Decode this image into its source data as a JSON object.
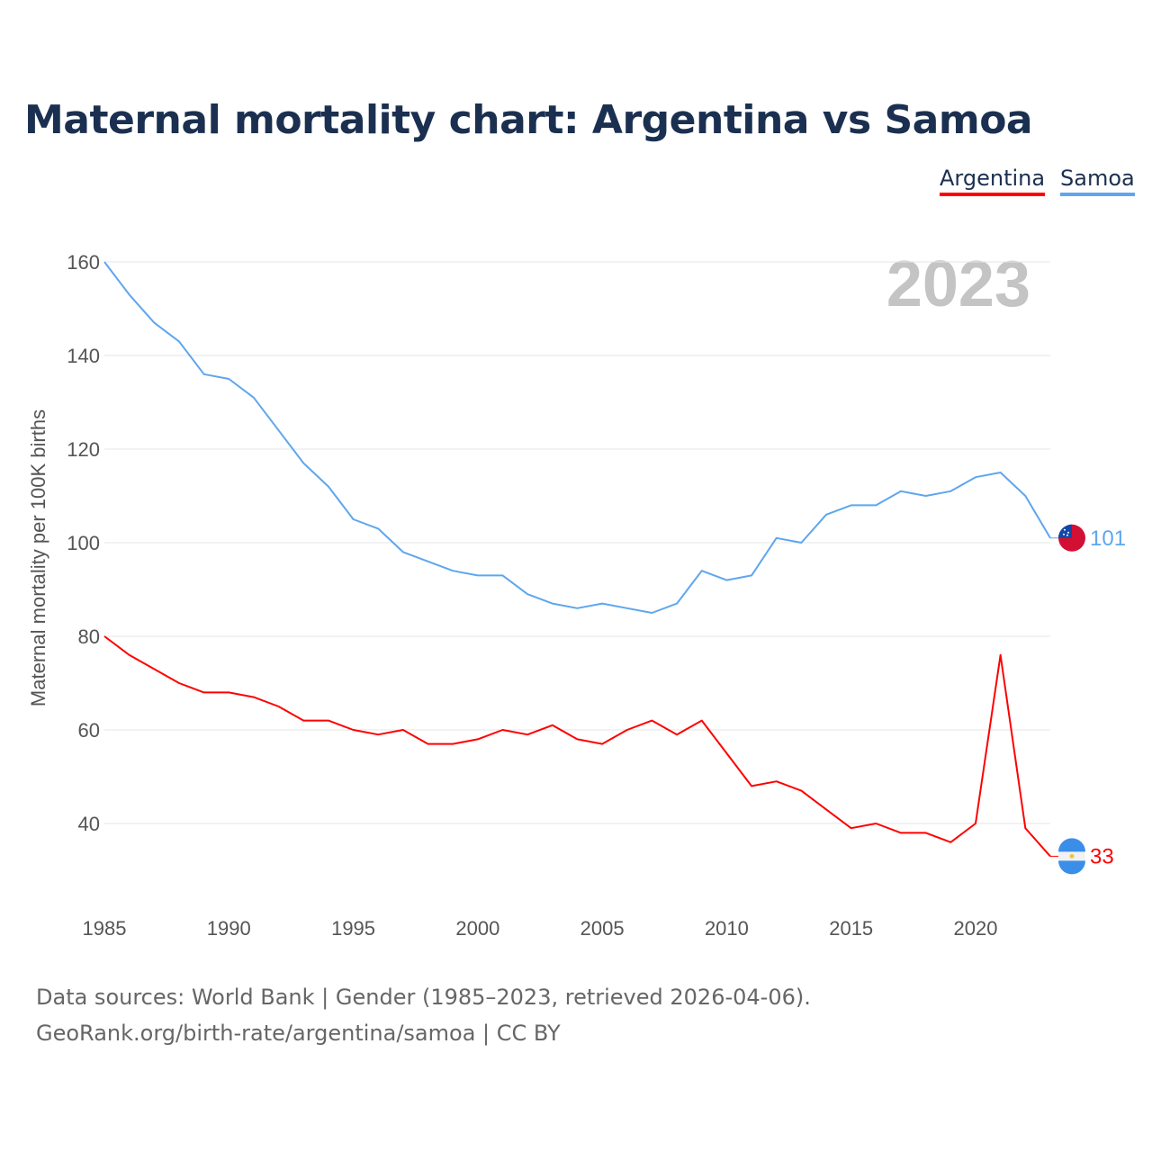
{
  "title": "Maternal mortality chart: Argentina vs Samoa",
  "footer": {
    "line1": "Data sources: World Bank | Gender (1985–2023, retrieved 2026-04-06).",
    "line2": "GeoRank.org/birth-rate/argentina/samoa | CC BY"
  },
  "chart_data": {
    "type": "line",
    "title": "Maternal mortality chart: Argentina vs Samoa",
    "ylabel": "Maternal mortality per 100K births",
    "xlabel": "",
    "year_label": "2023",
    "x": [
      1985,
      1986,
      1987,
      1988,
      1989,
      1990,
      1991,
      1992,
      1993,
      1994,
      1995,
      1996,
      1997,
      1998,
      1999,
      2000,
      2001,
      2002,
      2003,
      2004,
      2005,
      2006,
      2007,
      2008,
      2009,
      2010,
      2011,
      2012,
      2013,
      2014,
      2015,
      2016,
      2017,
      2018,
      2019,
      2020,
      2021,
      2022,
      2023
    ],
    "xticks": [
      "1985",
      "1990",
      "1995",
      "2000",
      "2005",
      "2010",
      "2015",
      "2020"
    ],
    "yticks": [
      "40",
      "60",
      "80",
      "100",
      "120",
      "140",
      "160"
    ],
    "ylim": [
      20,
      170
    ],
    "legend_position": "top-right",
    "series": [
      {
        "name": "Argentina",
        "color": "#ff0000",
        "end_label": "33",
        "flag": "argentina-flag",
        "values": [
          80,
          76,
          73,
          70,
          68,
          68,
          67,
          65,
          62,
          62,
          60,
          59,
          60,
          57,
          57,
          58,
          60,
          59,
          61,
          58,
          57,
          60,
          62,
          59,
          62,
          55,
          48,
          49,
          47,
          43,
          39,
          40,
          38,
          38,
          36,
          40,
          76,
          39,
          33
        ]
      },
      {
        "name": "Samoa",
        "color": "#5ea6ee",
        "end_label": "101",
        "flag": "samoa-flag",
        "values": [
          160,
          153,
          147,
          143,
          136,
          135,
          131,
          124,
          117,
          112,
          105,
          103,
          98,
          96,
          94,
          93,
          93,
          89,
          87,
          86,
          87,
          86,
          85,
          87,
          94,
          92,
          93,
          101,
          100,
          106,
          108,
          108,
          111,
          110,
          111,
          114,
          115,
          110,
          101
        ]
      }
    ]
  }
}
